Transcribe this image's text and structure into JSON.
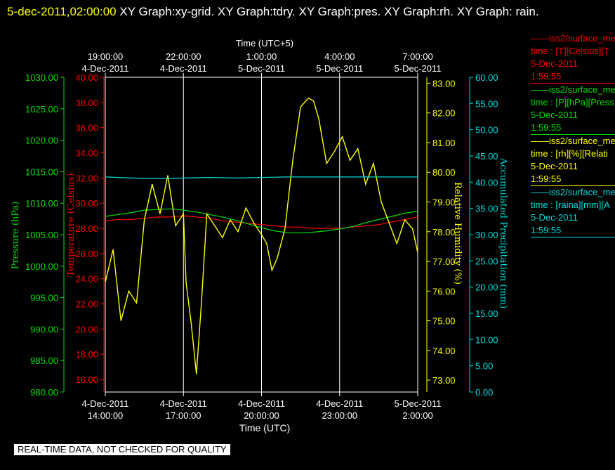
{
  "header": {
    "timestamp": "5-dec-2011,02:00:00",
    "title_rest": "XY Graph:xy-grid.  XY Graph:tdry.  XY Graph:pres.  XY Graph:rh.  XY Graph: rain."
  },
  "footer": {
    "notice": "REAL-TIME DATA, NOT CHECKED FOR QUALITY"
  },
  "legend": [
    {
      "name": "iss2/surface_me",
      "line1": "time : [T][Celsius][T",
      "line2": "5-Dec-2011",
      "line3": "1:59:55",
      "color": "#ff0000"
    },
    {
      "name": "iss2/surface_me",
      "line1": "time : [P][hPa][Press",
      "line2": "5-Dec-2011",
      "line3": "1:59:55",
      "color": "#00dd00"
    },
    {
      "name": "iss2/surface_me",
      "line1": "time : [rh][%][Relati",
      "line2": "5-Dec-2011",
      "line3": "1:59:55",
      "color": "#ffff00"
    },
    {
      "name": "iss2/surface_me",
      "line1": "time : [raina][mm][A",
      "line2": "5-Dec-2011",
      "line3": "1:59:55",
      "color": "#00dddd"
    }
  ],
  "chart_data": {
    "type": "line",
    "top_axis": {
      "label": "Time (UTC+5)",
      "ticks": [
        {
          "time": "19:00:00",
          "date": "4-Dec-2011"
        },
        {
          "time": "22:00:00",
          "date": "4-Dec-2011"
        },
        {
          "time": "1:00:00",
          "date": "5-Dec-2011"
        },
        {
          "time": "4:00:00",
          "date": "5-Dec-2011"
        },
        {
          "time": "7:00:00",
          "date": "5-Dec-2011"
        }
      ]
    },
    "bottom_axis": {
      "label": "Time (UTC)",
      "ticks": [
        {
          "date": "4-Dec-2011",
          "time": "14:00:00"
        },
        {
          "date": "4-Dec-2011",
          "time": "17:00:00"
        },
        {
          "date": "4-Dec-2011",
          "time": "20:00:00"
        },
        {
          "date": "4-Dec-2011",
          "time": "23:00:00"
        },
        {
          "date": "5-Dec-2011",
          "time": "2:00:00"
        }
      ],
      "range_hours": [
        0,
        12
      ]
    },
    "axes": {
      "pressure": {
        "label": "Pressure (hPa)",
        "color": "#00dd00",
        "min": 980,
        "max": 1030,
        "ticks": [
          "980.00",
          "985.00",
          "990.00",
          "995.00",
          "1000.00",
          "1005.00",
          "1010.00",
          "1015.00",
          "1020.00",
          "1025.00",
          "1030.00"
        ]
      },
      "temperature": {
        "label": "Temperature (Celsius)",
        "color": "#ff0000",
        "min": 15,
        "max": 40,
        "ticks": [
          "16.00",
          "18.00",
          "20.00",
          "22.00",
          "24.00",
          "26.00",
          "28.00",
          "30.00",
          "32.00",
          "34.00",
          "36.00",
          "38.00",
          "40.00"
        ]
      },
      "rh": {
        "label": "Relative Humidity (%)",
        "color": "#ffff00",
        "min": 72.6,
        "max": 83.2,
        "ticks": [
          "73.00",
          "74.00",
          "75.00",
          "76.00",
          "77.00",
          "78.00",
          "79.00",
          "80.00",
          "81.00",
          "82.00",
          "83.00"
        ]
      },
      "rain": {
        "label": "Accumulated Precipitation (mm)",
        "color": "#00dddd",
        "min": 0,
        "max": 60,
        "ticks": [
          "0.00",
          "5.00",
          "10.00",
          "15.00",
          "20.00",
          "25.00",
          "30.00",
          "35.00",
          "40.00",
          "45.00",
          "50.00",
          "55.00",
          "60.00"
        ]
      }
    },
    "series": [
      {
        "name": "T",
        "axis": "temperature",
        "color": "#ff0000",
        "x": [
          0,
          0.5,
          1,
          1.5,
          2,
          2.5,
          3,
          3.5,
          4,
          4.5,
          5,
          5.5,
          6,
          6.5,
          7,
          7.5,
          8,
          8.5,
          9,
          9.5,
          10,
          10.5,
          11,
          11.5,
          12
        ],
        "y": [
          28.6,
          28.7,
          28.7,
          28.8,
          28.9,
          28.9,
          29.0,
          28.9,
          28.8,
          28.6,
          28.5,
          28.4,
          28.3,
          28.2,
          28.1,
          28.1,
          28.0,
          28.0,
          28.0,
          28.1,
          28.2,
          28.3,
          28.5,
          28.7,
          28.9
        ]
      },
      {
        "name": "P",
        "axis": "pressure",
        "color": "#00dd00",
        "x": [
          0,
          0.5,
          1,
          1.5,
          2,
          2.5,
          3,
          3.5,
          4,
          4.5,
          5,
          5.5,
          6,
          6.5,
          7,
          7.5,
          8,
          8.5,
          9,
          9.5,
          10,
          10.5,
          11,
          11.5,
          12
        ],
        "y": [
          1007.9,
          1008.2,
          1008.5,
          1008.9,
          1009.0,
          1009.1,
          1008.9,
          1008.6,
          1008.2,
          1007.8,
          1007.3,
          1006.7,
          1006.1,
          1005.6,
          1005.3,
          1005.3,
          1005.4,
          1005.6,
          1005.9,
          1006.3,
          1006.9,
          1007.4,
          1007.9,
          1008.4,
          1008.7
        ]
      },
      {
        "name": "rh",
        "axis": "rh",
        "color": "#ffff00",
        "x": [
          0,
          0.3,
          0.6,
          0.9,
          1.2,
          1.5,
          1.8,
          2.1,
          2.4,
          2.7,
          3.0,
          3.1,
          3.3,
          3.5,
          3.7,
          3.9,
          4.2,
          4.5,
          4.8,
          5.1,
          5.4,
          5.7,
          6.0,
          6.2,
          6.4,
          6.6,
          6.9,
          7.2,
          7.5,
          7.8,
          8.0,
          8.2,
          8.5,
          8.8,
          9.1,
          9.4,
          9.7,
          10.0,
          10.3,
          10.6,
          10.9,
          11.2,
          11.5,
          11.8,
          12
        ],
        "y": [
          76.3,
          77.4,
          75.0,
          76.0,
          75.6,
          78.4,
          79.6,
          78.6,
          79.9,
          78.2,
          78.6,
          76.3,
          74.9,
          73.2,
          75.7,
          78.6,
          78.2,
          77.8,
          78.4,
          78.0,
          78.8,
          78.3,
          77.9,
          77.6,
          76.7,
          77.1,
          78.1,
          80.4,
          82.2,
          82.5,
          82.4,
          81.8,
          80.3,
          80.7,
          81.2,
          80.4,
          80.8,
          79.6,
          80.3,
          79.0,
          78.3,
          77.6,
          78.4,
          78.1,
          77.3
        ]
      },
      {
        "name": "raina",
        "axis": "rain",
        "color": "#00dddd",
        "x": [
          0,
          1,
          2,
          3,
          4,
          5,
          6,
          7,
          8,
          9,
          10,
          11,
          12
        ],
        "y": [
          41.0,
          40.8,
          40.7,
          40.8,
          40.9,
          40.8,
          40.9,
          41.0,
          41.0,
          41.0,
          41.0,
          41.0,
          41.0
        ]
      }
    ]
  }
}
